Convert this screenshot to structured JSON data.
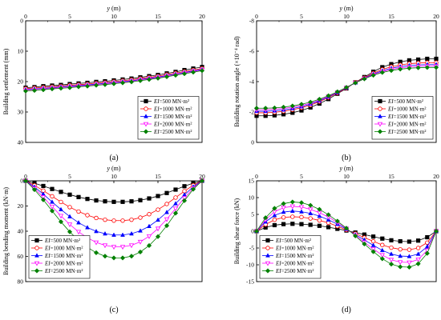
{
  "palette": {
    "series_colors": [
      "#000000",
      "#ff0000",
      "#0000ff",
      "#ff00ff",
      "#008000"
    ],
    "series_markers": [
      "square",
      "circle-open",
      "triangle",
      "triangle-down-open",
      "diamond"
    ]
  },
  "chart_data": [
    {
      "panel": "(a)",
      "type": "line",
      "top_axis_label": "y (m)",
      "ylabel": "Building settlement (mm)",
      "xlim": [
        0,
        20
      ],
      "x_ticks": [
        "0",
        "5",
        "10",
        "15",
        "20"
      ],
      "ylim": [
        0,
        40
      ],
      "y_inverted": true,
      "y_ticks": [
        "0",
        "10",
        "20",
        "30",
        "40"
      ],
      "legend_position": "bottom-right",
      "grid": false,
      "x": [
        0,
        1,
        2,
        3,
        4,
        5,
        6,
        7,
        8,
        9,
        10,
        11,
        12,
        13,
        14,
        15,
        16,
        17,
        18,
        19,
        20
      ],
      "series": [
        {
          "name": "EI=500 MN·m²",
          "values": [
            22.0,
            21.8,
            21.5,
            21.3,
            21.1,
            20.8,
            20.6,
            20.4,
            20.1,
            19.9,
            19.6,
            19.3,
            19.0,
            18.6,
            18.2,
            17.8,
            17.3,
            16.8,
            16.2,
            15.7,
            15.2
          ]
        },
        {
          "name": "EI=1000 MN·m²",
          "values": [
            22.3,
            22.1,
            21.9,
            21.7,
            21.5,
            21.2,
            21.0,
            20.8,
            20.5,
            20.3,
            20.0,
            19.7,
            19.4,
            19.0,
            18.6,
            18.2,
            17.7,
            17.2,
            16.7,
            16.2,
            15.7
          ]
        },
        {
          "name": "EI=1500 MN·m²",
          "values": [
            22.6,
            22.4,
            22.2,
            22.0,
            21.7,
            21.5,
            21.3,
            21.1,
            20.8,
            20.6,
            20.3,
            20.0,
            19.7,
            19.3,
            18.9,
            18.5,
            18.0,
            17.5,
            17.0,
            16.5,
            16.0
          ]
        },
        {
          "name": "EI=2000 MN·m²",
          "values": [
            22.9,
            22.7,
            22.5,
            22.2,
            22.0,
            21.8,
            21.5,
            21.3,
            21.0,
            20.8,
            20.5,
            20.2,
            19.9,
            19.5,
            19.1,
            18.7,
            18.2,
            17.7,
            17.2,
            16.7,
            16.2
          ]
        },
        {
          "name": "EI=2500 MN·m²",
          "values": [
            23.1,
            22.9,
            22.7,
            22.4,
            22.2,
            22.0,
            21.7,
            21.5,
            21.2,
            21.0,
            20.7,
            20.4,
            20.1,
            19.7,
            19.3,
            18.9,
            18.4,
            17.9,
            17.4,
            16.9,
            16.4
          ]
        }
      ]
    },
    {
      "panel": "(b)",
      "type": "line",
      "top_axis_label": "y (m)",
      "ylabel": "Building rotation angle (×10⁻⁴ rad)",
      "xlim": [
        0,
        20
      ],
      "x_ticks": [
        "0",
        "5",
        "10",
        "15",
        "20"
      ],
      "ylim": [
        -8,
        0
      ],
      "y_inverted": true,
      "y_ticks": [
        "0",
        "-2",
        "-4",
        "-6",
        "-8"
      ],
      "legend_position": "bottom-right",
      "grid": false,
      "x": [
        0,
        1,
        2,
        3,
        4,
        5,
        6,
        7,
        8,
        9,
        10,
        11,
        12,
        13,
        14,
        15,
        16,
        17,
        18,
        19,
        20
      ],
      "series": [
        {
          "name": "EI=500 MN·m²",
          "values": [
            -1.75,
            -1.75,
            -1.78,
            -1.85,
            -1.95,
            -2.1,
            -2.3,
            -2.55,
            -2.85,
            -3.2,
            -3.55,
            -3.95,
            -4.3,
            -4.65,
            -4.95,
            -5.15,
            -5.3,
            -5.4,
            -5.45,
            -5.5,
            -5.5
          ]
        },
        {
          "name": "EI=1000 MN·m²",
          "values": [
            -1.95,
            -1.95,
            -1.98,
            -2.05,
            -2.15,
            -2.28,
            -2.45,
            -2.68,
            -2.95,
            -3.25,
            -3.58,
            -3.95,
            -4.25,
            -4.55,
            -4.8,
            -4.98,
            -5.1,
            -5.18,
            -5.22,
            -5.25,
            -5.25
          ]
        },
        {
          "name": "EI=1500 MN·m²",
          "values": [
            -2.05,
            -2.05,
            -2.08,
            -2.14,
            -2.23,
            -2.35,
            -2.52,
            -2.73,
            -2.99,
            -3.28,
            -3.6,
            -3.93,
            -4.22,
            -4.5,
            -4.72,
            -4.88,
            -4.99,
            -5.06,
            -5.1,
            -5.12,
            -5.12
          ]
        },
        {
          "name": "EI=2000 MN·m²",
          "values": [
            -2.15,
            -2.15,
            -2.18,
            -2.23,
            -2.32,
            -2.43,
            -2.58,
            -2.78,
            -3.03,
            -3.3,
            -3.6,
            -3.92,
            -4.2,
            -4.45,
            -4.65,
            -4.8,
            -4.9,
            -4.96,
            -5.0,
            -5.02,
            -5.02
          ]
        },
        {
          "name": "EI=2500 MN·m²",
          "values": [
            -2.25,
            -2.25,
            -2.27,
            -2.32,
            -2.4,
            -2.51,
            -2.65,
            -2.84,
            -3.07,
            -3.33,
            -3.62,
            -3.92,
            -4.18,
            -4.42,
            -4.6,
            -4.73,
            -4.82,
            -4.88,
            -4.91,
            -4.93,
            -4.93
          ]
        }
      ]
    },
    {
      "panel": "(c)",
      "type": "line",
      "top_axis_label": "y (m)",
      "ylabel": "Building bending moment (kN·m)",
      "xlim": [
        0,
        20
      ],
      "x_ticks": [
        "0",
        "5",
        "10",
        "15",
        "20"
      ],
      "ylim": [
        0,
        80
      ],
      "y_inverted": true,
      "y_ticks": [
        "0",
        "20",
        "40",
        "60",
        "80"
      ],
      "legend_position": "bottom-left",
      "grid": false,
      "x": [
        0,
        1,
        2,
        3,
        4,
        5,
        6,
        7,
        8,
        9,
        10,
        11,
        12,
        13,
        14,
        15,
        16,
        17,
        18,
        19,
        20
      ],
      "series": [
        {
          "name": "EI=500 MN·m²",
          "values": [
            0,
            1.9,
            4.1,
            6.5,
            8.8,
            11.0,
            12.9,
            14.4,
            15.6,
            16.3,
            16.7,
            16.7,
            16.3,
            15.4,
            14.0,
            12.1,
            9.7,
            7.0,
            4.3,
            1.8,
            0
          ]
        },
        {
          "name": "EI=1000 MN·m²",
          "values": [
            0,
            3.6,
            7.8,
            12.3,
            16.8,
            20.9,
            24.4,
            27.3,
            29.5,
            30.9,
            31.6,
            31.6,
            30.9,
            29.2,
            26.5,
            22.9,
            18.4,
            13.3,
            8.2,
            3.5,
            0
          ]
        },
        {
          "name": "EI=1500 MN·m²",
          "values": [
            0,
            4.9,
            10.6,
            16.8,
            22.8,
            28.4,
            33.2,
            37.1,
            40.1,
            42.0,
            43.0,
            43.0,
            42.0,
            39.7,
            36.1,
            31.1,
            25.0,
            18.1,
            11.1,
            4.7,
            0
          ]
        },
        {
          "name": "EI=2000 MN·m²",
          "values": [
            0,
            6.0,
            12.9,
            20.5,
            27.8,
            34.6,
            40.5,
            45.2,
            48.9,
            51.2,
            52.4,
            52.4,
            51.2,
            48.4,
            44.0,
            37.9,
            30.5,
            22.0,
            13.6,
            5.8,
            0
          ]
        },
        {
          "name": "EI=2500 MN·m²",
          "values": [
            0,
            7.0,
            15.1,
            23.9,
            32.5,
            40.5,
            47.3,
            52.8,
            57.1,
            59.8,
            61.2,
            61.2,
            59.8,
            56.5,
            51.4,
            44.3,
            35.6,
            25.7,
            15.8,
            6.7,
            0
          ]
        }
      ]
    },
    {
      "panel": "(d)",
      "type": "line",
      "top_axis_label": "y (m)",
      "ylabel": "Building shear force (kN)",
      "xlim": [
        0,
        20
      ],
      "x_ticks": [
        "0",
        "5",
        "10",
        "15",
        "20"
      ],
      "ylim": [
        -15,
        15
      ],
      "y_inverted": false,
      "y_ticks": [
        "15",
        "10",
        "5",
        "0",
        "-5",
        "-10",
        "-15"
      ],
      "legend_position": "bottom-left",
      "grid": false,
      "x": [
        0,
        1,
        2,
        3,
        4,
        5,
        6,
        7,
        8,
        9,
        10,
        11,
        12,
        13,
        14,
        15,
        16,
        17,
        18,
        19,
        20
      ],
      "series": [
        {
          "name": "EI=500 MN·m²",
          "values": [
            0,
            1.1,
            1.8,
            2.1,
            2.2,
            2.1,
            1.9,
            1.6,
            1.2,
            0.7,
            0.2,
            -0.4,
            -1.0,
            -1.6,
            -2.2,
            -2.7,
            -3.0,
            -3.1,
            -2.8,
            -1.8,
            0
          ]
        },
        {
          "name": "EI=1000 MN·m²",
          "values": [
            0,
            2.0,
            3.4,
            4.1,
            4.3,
            4.2,
            3.8,
            3.2,
            2.5,
            1.5,
            0.4,
            -0.7,
            -1.9,
            -3.0,
            -4.1,
            -4.9,
            -5.4,
            -5.5,
            -5.0,
            -3.4,
            0
          ]
        },
        {
          "name": "EI=1500 MN·m²",
          "values": [
            0,
            2.8,
            4.7,
            5.7,
            6.0,
            5.8,
            5.3,
            4.5,
            3.4,
            2.1,
            0.6,
            -1.0,
            -2.6,
            -4.2,
            -5.7,
            -6.8,
            -7.4,
            -7.5,
            -6.8,
            -4.6,
            0
          ]
        },
        {
          "name": "EI=2000 MN·m²",
          "values": [
            0,
            3.4,
            5.8,
            7.0,
            7.4,
            7.2,
            6.5,
            5.5,
            4.2,
            2.6,
            0.8,
            -1.2,
            -3.3,
            -5.3,
            -7.1,
            -8.5,
            -9.2,
            -9.3,
            -8.4,
            -5.7,
            0
          ]
        },
        {
          "name": "EI=2500 MN·m²",
          "values": [
            0,
            4.0,
            6.8,
            8.2,
            8.7,
            8.5,
            7.7,
            6.5,
            4.9,
            3.0,
            0.9,
            -1.4,
            -3.8,
            -6.1,
            -8.2,
            -9.8,
            -10.6,
            -10.7,
            -9.7,
            -6.6,
            0
          ]
        }
      ]
    }
  ]
}
